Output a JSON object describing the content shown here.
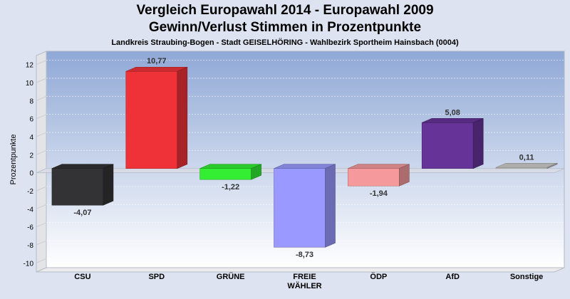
{
  "title": "Vergleich Europawahl 2014 - Europawahl 2009",
  "subtitle": "Gewinn/Verlust Stimmen in Prozentpunkte",
  "description": "Landkreis Straubing-Bogen - Stadt GEISELHÖRING - Wahlbezirk Sportheim Hainsbach (0004)",
  "chart_data": {
    "type": "bar",
    "categories": [
      "CSU",
      "SPD",
      "GRÜNE",
      "FREIE\nWÄHLER",
      "ÖDP",
      "AfD",
      "Sonstige"
    ],
    "values": [
      -4.07,
      10.77,
      -1.22,
      -8.73,
      -1.94,
      5.08,
      0.11
    ],
    "value_labels": [
      "-4,07",
      "10,77",
      "-1,22",
      "-8,73",
      "-1,94",
      "5,08",
      "0,11"
    ],
    "colors": [
      "#333336",
      "#ee3238",
      "#33ee33",
      "#9999ff",
      "#f6999c",
      "#663399",
      "#cccccc"
    ],
    "ylabel": "Prozentpunkte",
    "xlabel": "",
    "ylim": [
      -11,
      13
    ],
    "yticks": [
      12,
      10,
      8,
      6,
      4,
      2,
      0,
      -2,
      -4,
      -6,
      -8,
      -10
    ],
    "grid": true
  }
}
